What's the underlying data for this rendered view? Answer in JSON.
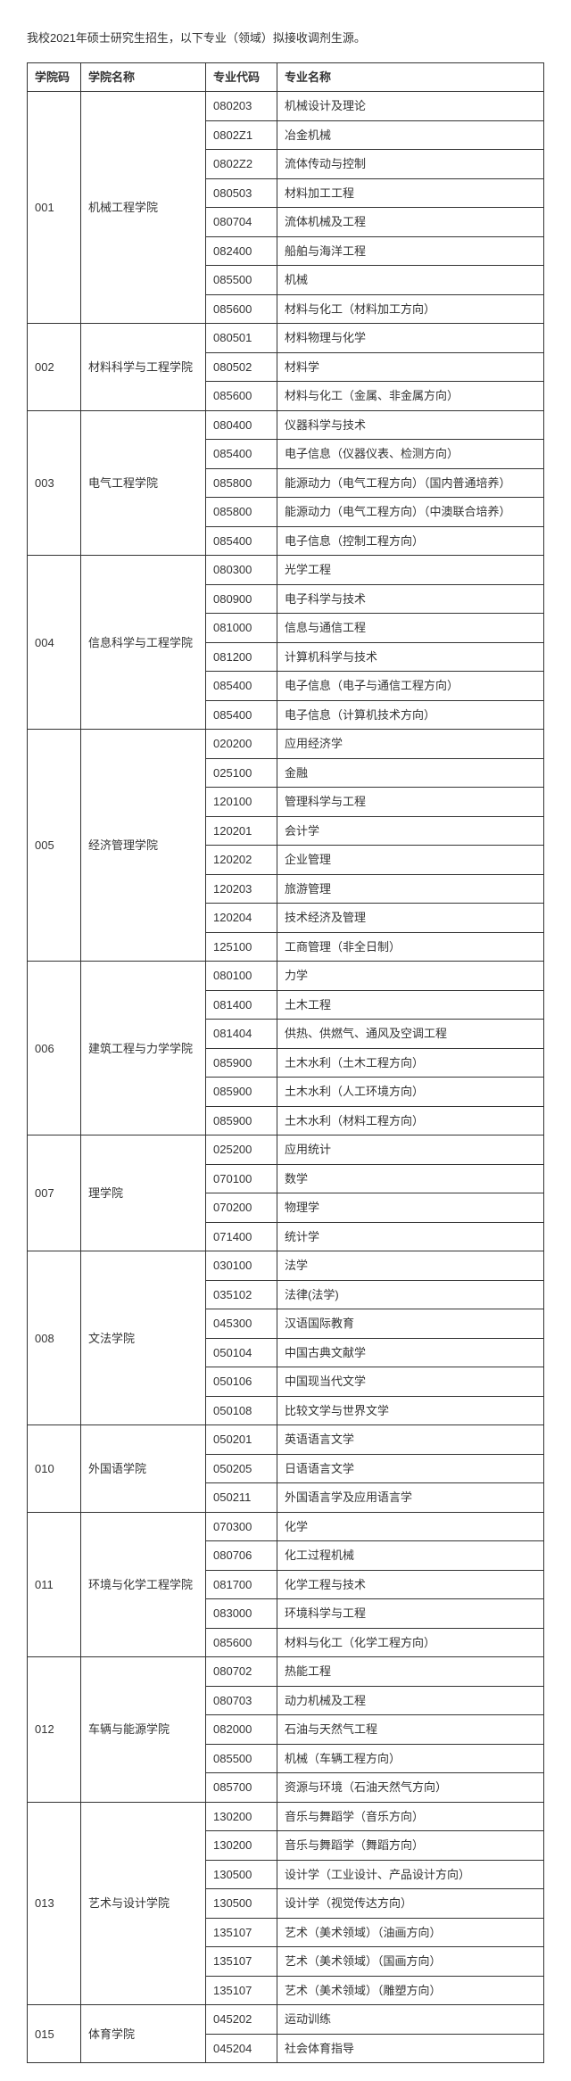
{
  "intro": "我校2021年硕士研究生招生，以下专业（领域）拟接收调剂生源。",
  "headers": {
    "col1": "学院码",
    "col2": "学院名称",
    "col3": "专业代码",
    "col4": "专业名称"
  },
  "colleges": [
    {
      "code": "001",
      "name": "机械工程学院",
      "majors": [
        {
          "code": "080203",
          "name": "机械设计及理论"
        },
        {
          "code": "0802Z1",
          "name": "冶金机械"
        },
        {
          "code": "0802Z2",
          "name": "流体传动与控制"
        },
        {
          "code": "080503",
          "name": "材料加工工程"
        },
        {
          "code": "080704",
          "name": "流体机械及工程"
        },
        {
          "code": "082400",
          "name": "船舶与海洋工程"
        },
        {
          "code": "085500",
          "name": "机械"
        },
        {
          "code": "085600",
          "name": "材料与化工（材料加工方向）"
        }
      ]
    },
    {
      "code": "002",
      "name": "材料科学与工程学院",
      "majors": [
        {
          "code": "080501",
          "name": "材料物理与化学"
        },
        {
          "code": "080502",
          "name": "材料学"
        },
        {
          "code": "085600",
          "name": "材料与化工（金属、非金属方向）"
        }
      ]
    },
    {
      "code": "003",
      "name": "电气工程学院",
      "majors": [
        {
          "code": "080400",
          "name": "仪器科学与技术"
        },
        {
          "code": "085400",
          "name": "电子信息（仪器仪表、检测方向）"
        },
        {
          "code": "085800",
          "name": "能源动力（电气工程方向）（国内普通培养）"
        },
        {
          "code": "085800",
          "name": "能源动力（电气工程方向）（中澳联合培养）"
        },
        {
          "code": "085400",
          "name": "电子信息（控制工程方向）"
        }
      ]
    },
    {
      "code": "004",
      "name": "信息科学与工程学院",
      "majors": [
        {
          "code": "080300",
          "name": "光学工程"
        },
        {
          "code": "080900",
          "name": "电子科学与技术"
        },
        {
          "code": "081000",
          "name": "信息与通信工程"
        },
        {
          "code": "081200",
          "name": "计算机科学与技术"
        },
        {
          "code": "085400",
          "name": "电子信息（电子与通信工程方向）"
        },
        {
          "code": "085400",
          "name": "电子信息（计算机技术方向）"
        }
      ]
    },
    {
      "code": "005",
      "name": "经济管理学院",
      "majors": [
        {
          "code": "020200",
          "name": "应用经济学"
        },
        {
          "code": "025100",
          "name": "金融"
        },
        {
          "code": "120100",
          "name": "管理科学与工程"
        },
        {
          "code": "120201",
          "name": "会计学"
        },
        {
          "code": "120202",
          "name": "企业管理"
        },
        {
          "code": "120203",
          "name": "旅游管理"
        },
        {
          "code": "120204",
          "name": "技术经济及管理"
        },
        {
          "code": "125100",
          "name": "工商管理（非全日制）"
        }
      ]
    },
    {
      "code": "006",
      "name": "建筑工程与力学学院",
      "majors": [
        {
          "code": "080100",
          "name": "力学"
        },
        {
          "code": "081400",
          "name": "土木工程"
        },
        {
          "code": "081404",
          "name": "供热、供燃气、通风及空调工程"
        },
        {
          "code": "085900",
          "name": "土木水利（土木工程方向）"
        },
        {
          "code": "085900",
          "name": "土木水利（人工环境方向）"
        },
        {
          "code": "085900",
          "name": "土木水利（材料工程方向）"
        }
      ]
    },
    {
      "code": "007",
      "name": "理学院",
      "majors": [
        {
          "code": "025200",
          "name": "应用统计"
        },
        {
          "code": "070100",
          "name": "数学"
        },
        {
          "code": "070200",
          "name": "物理学"
        },
        {
          "code": "071400",
          "name": "统计学"
        }
      ]
    },
    {
      "code": "008",
      "name": "文法学院",
      "majors": [
        {
          "code": "030100",
          "name": "法学"
        },
        {
          "code": "035102",
          "name": "法律(法学)"
        },
        {
          "code": "045300",
          "name": "汉语国际教育"
        },
        {
          "code": "050104",
          "name": "中国古典文献学"
        },
        {
          "code": "050106",
          "name": "中国现当代文学"
        },
        {
          "code": "050108",
          "name": "比较文学与世界文学"
        }
      ]
    },
    {
      "code": "010",
      "name": "外国语学院",
      "majors": [
        {
          "code": "050201",
          "name": "英语语言文学"
        },
        {
          "code": "050205",
          "name": "日语语言文学"
        },
        {
          "code": "050211",
          "name": "外国语言学及应用语言学"
        }
      ]
    },
    {
      "code": "011",
      "name": "环境与化学工程学院",
      "majors": [
        {
          "code": "070300",
          "name": "化学"
        },
        {
          "code": "080706",
          "name": "化工过程机械"
        },
        {
          "code": "081700",
          "name": "化学工程与技术"
        },
        {
          "code": "083000",
          "name": "环境科学与工程"
        },
        {
          "code": "085600",
          "name": "材料与化工（化学工程方向）"
        }
      ]
    },
    {
      "code": "012",
      "name": "车辆与能源学院",
      "majors": [
        {
          "code": "080702",
          "name": "热能工程"
        },
        {
          "code": "080703",
          "name": "动力机械及工程"
        },
        {
          "code": "082000",
          "name": "石油与天然气工程"
        },
        {
          "code": "085500",
          "name": "机械（车辆工程方向）"
        },
        {
          "code": "085700",
          "name": "资源与环境（石油天然气方向）"
        }
      ]
    },
    {
      "code": "013",
      "name": "艺术与设计学院",
      "majors": [
        {
          "code": "130200",
          "name": "音乐与舞蹈学（音乐方向）"
        },
        {
          "code": "130200",
          "name": "音乐与舞蹈学（舞蹈方向）"
        },
        {
          "code": "130500",
          "name": "设计学（工业设计、产品设计方向）"
        },
        {
          "code": "130500",
          "name": "设计学（视觉传达方向）"
        },
        {
          "code": "135107",
          "name": "艺术（美术领域）（油画方向）"
        },
        {
          "code": "135107",
          "name": "艺术（美术领域）（国画方向）"
        },
        {
          "code": "135107",
          "name": "艺术（美术领域）（雕塑方向）"
        }
      ]
    },
    {
      "code": "015",
      "name": "体育学院",
      "majors": [
        {
          "code": "045202",
          "name": "运动训练"
        },
        {
          "code": "045204",
          "name": "社会体育指导"
        }
      ]
    }
  ]
}
